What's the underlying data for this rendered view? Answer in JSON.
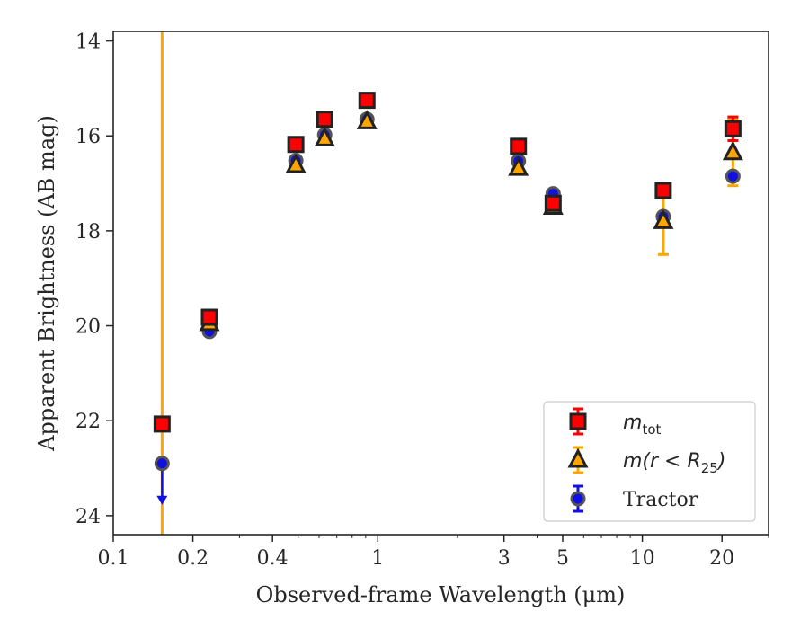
{
  "chart_data": {
    "type": "scatter",
    "xlabel": "Observed-frame Wavelength (μm)",
    "ylabel": "Apparent Brightness (AB mag)",
    "x_scale": "log",
    "xlim": [
      0.1,
      30
    ],
    "ylim": [
      24.4,
      13.8
    ],
    "y_inverted": true,
    "x_ticks": [
      {
        "value": 0.1,
        "label": "0.1"
      },
      {
        "value": 0.2,
        "label": "0.2"
      },
      {
        "value": 0.4,
        "label": "0.4"
      },
      {
        "value": 1,
        "label": "1"
      },
      {
        "value": 3,
        "label": "3"
      },
      {
        "value": 5,
        "label": "5"
      },
      {
        "value": 10,
        "label": "10"
      },
      {
        "value": 20,
        "label": "20"
      }
    ],
    "y_ticks": [
      14,
      16,
      18,
      20,
      22,
      24
    ],
    "grid": false,
    "legend_position": "bottom-right",
    "vertical_line": {
      "x": 0.153,
      "color": "#FFA500"
    },
    "series": [
      {
        "name": "m_tot",
        "marker": "square",
        "color": "#FF0000",
        "edge": "#222222",
        "points": [
          {
            "x": 0.153,
            "y": 22.07
          },
          {
            "x": 0.231,
            "y": 19.82,
            "err": 0.15
          },
          {
            "x": 0.49,
            "y": 16.18
          },
          {
            "x": 0.63,
            "y": 15.65
          },
          {
            "x": 0.91,
            "y": 15.25
          },
          {
            "x": 3.4,
            "y": 16.22
          },
          {
            "x": 4.6,
            "y": 17.42
          },
          {
            "x": 12.0,
            "y": 17.15
          },
          {
            "x": 22.0,
            "y": 15.85,
            "err": 0.25
          }
        ]
      },
      {
        "name": "m(r < R25)",
        "marker": "triangle",
        "color": "#FFA500",
        "edge": "#222222",
        "points": [
          {
            "x": 0.231,
            "y": 19.95
          },
          {
            "x": 0.49,
            "y": 16.62
          },
          {
            "x": 0.63,
            "y": 16.06
          },
          {
            "x": 0.91,
            "y": 15.7
          },
          {
            "x": 3.4,
            "y": 16.68
          },
          {
            "x": 4.6,
            "y": 17.5
          },
          {
            "x": 12.0,
            "y": 17.8,
            "err": 0.7
          },
          {
            "x": 22.0,
            "y": 16.35,
            "err": 0.7
          }
        ]
      },
      {
        "name": "Tractor",
        "marker": "circle",
        "color": "#1010E0",
        "edge": "#555555",
        "points": [
          {
            "x": 0.153,
            "y": 22.9,
            "upper_limit": true
          },
          {
            "x": 0.231,
            "y": 20.12
          },
          {
            "x": 0.49,
            "y": 16.52
          },
          {
            "x": 0.63,
            "y": 15.98
          },
          {
            "x": 0.91,
            "y": 15.65
          },
          {
            "x": 3.4,
            "y": 16.53
          },
          {
            "x": 4.6,
            "y": 17.22
          },
          {
            "x": 12.0,
            "y": 17.7
          },
          {
            "x": 22.0,
            "y": 16.85
          }
        ]
      }
    ],
    "legend": [
      {
        "series": 0,
        "label": "m",
        "sub": "tot"
      },
      {
        "series": 1,
        "label": "m(r < R",
        "sub": "25",
        "tail": ")"
      },
      {
        "series": 2,
        "label": "Tractor"
      }
    ]
  }
}
